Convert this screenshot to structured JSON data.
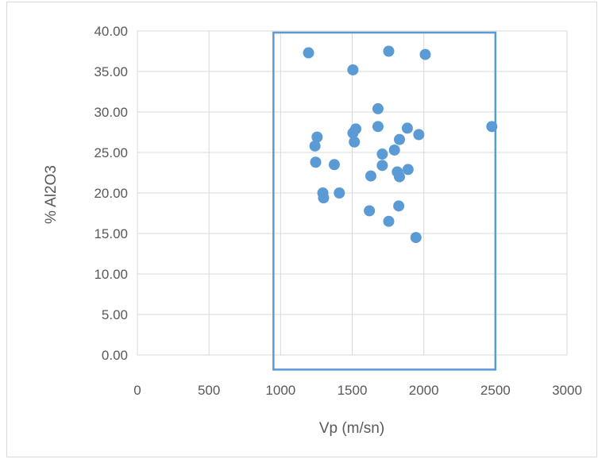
{
  "chart_data": {
    "type": "scatter",
    "title": "",
    "xlabel": "Vp (m/sn)",
    "ylabel": "% Al2O3",
    "xlim": [
      0,
      3000
    ],
    "ylim": [
      0,
      40
    ],
    "x_ticks": [
      "0",
      "500",
      "1000",
      "1500",
      "2000",
      "2500",
      "3000"
    ],
    "y_ticks": [
      "0.00",
      "5.00",
      "10.00",
      "15.00",
      "20.00",
      "25.00",
      "30.00",
      "35.00",
      "40.00"
    ],
    "grid": true,
    "legend": "none",
    "marker_color": "#5b9bd5",
    "highlight_box": {
      "x_range": [
        950,
        2500
      ],
      "y_range": [
        -1.8,
        39.8
      ],
      "color": "#5b9bd5"
    },
    "points": [
      {
        "x": 1195,
        "y": 37.3
      },
      {
        "x": 1755,
        "y": 37.5
      },
      {
        "x": 2010,
        "y": 37.1
      },
      {
        "x": 1505,
        "y": 35.2
      },
      {
        "x": 1680,
        "y": 30.4
      },
      {
        "x": 1680,
        "y": 28.2
      },
      {
        "x": 2475,
        "y": 28.2
      },
      {
        "x": 1525,
        "y": 27.9
      },
      {
        "x": 1885,
        "y": 28.0
      },
      {
        "x": 1505,
        "y": 27.4
      },
      {
        "x": 1965,
        "y": 27.2
      },
      {
        "x": 1255,
        "y": 26.9
      },
      {
        "x": 1830,
        "y": 26.6
      },
      {
        "x": 1515,
        "y": 26.3
      },
      {
        "x": 1240,
        "y": 25.8
      },
      {
        "x": 1795,
        "y": 25.3
      },
      {
        "x": 1710,
        "y": 24.8
      },
      {
        "x": 1245,
        "y": 23.8
      },
      {
        "x": 1375,
        "y": 23.5
      },
      {
        "x": 1710,
        "y": 23.4
      },
      {
        "x": 1890,
        "y": 22.9
      },
      {
        "x": 1815,
        "y": 22.6
      },
      {
        "x": 1630,
        "y": 22.1
      },
      {
        "x": 1830,
        "y": 22.0
      },
      {
        "x": 1295,
        "y": 20.0
      },
      {
        "x": 1410,
        "y": 20.0
      },
      {
        "x": 1300,
        "y": 19.4
      },
      {
        "x": 1825,
        "y": 18.4
      },
      {
        "x": 1620,
        "y": 17.8
      },
      {
        "x": 1755,
        "y": 16.5
      },
      {
        "x": 1945,
        "y": 14.5
      }
    ]
  }
}
